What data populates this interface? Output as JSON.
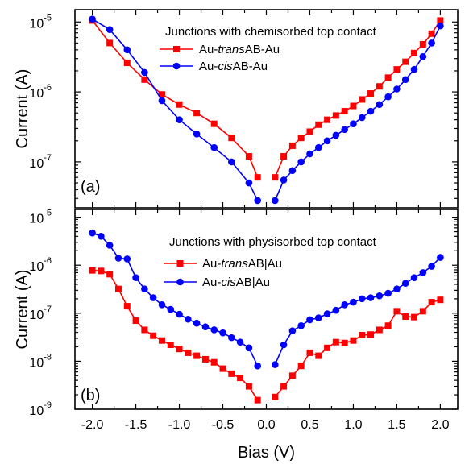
{
  "x_axis": {
    "label": "Bias (V)",
    "ticks": [
      "-2.0",
      "-1.5",
      "-1.0",
      "-0.5",
      "0.0",
      "0.5",
      "1.0",
      "1.5",
      "2.0"
    ]
  },
  "colors": {
    "trans": "#ff0000",
    "cis": "#0000ff"
  },
  "chart_data": [
    {
      "type": "line",
      "panel_label": "(a)",
      "ylabel": "Current (A)",
      "yscale": "log",
      "xlim": [
        -2.2,
        2.2
      ],
      "ylim": [
        2.2e-08,
        1.5e-05
      ],
      "y_ticks": [
        {
          "v": 1e-07,
          "mant": "10",
          "exp": "-7"
        },
        {
          "v": 1e-06,
          "mant": "10",
          "exp": "-6"
        },
        {
          "v": 1e-05,
          "mant": "10",
          "exp": "-5"
        }
      ],
      "legend_title": "Junctions with chemisorbed top contact",
      "legend_position": "top-right",
      "series": [
        {
          "name": "Au-transAB-Au",
          "legend": [
            "Au-",
            "trans",
            "AB-Au"
          ],
          "color": "#ff0000",
          "marker": "square",
          "branches": [
            {
              "x": [
                -2.0,
                -1.8,
                -1.6,
                -1.4,
                -1.2,
                -1.0,
                -0.8,
                -0.6,
                -0.4,
                -0.2,
                -0.1
              ],
              "y": [
                1.05e-05,
                5e-06,
                2.6e-06,
                1.5e-06,
                9.2e-07,
                6.6e-07,
                5e-07,
                3.5e-07,
                2.2e-07,
                1.2e-07,
                6e-08
              ]
            },
            {
              "x": [
                0.1,
                0.2,
                0.3,
                0.4,
                0.5,
                0.6,
                0.7,
                0.8,
                0.9,
                1.0,
                1.1,
                1.2,
                1.3,
                1.4,
                1.5,
                1.6,
                1.7,
                1.8,
                1.9,
                2.0
              ],
              "y": [
                6e-08,
                1.2e-07,
                1.7e-07,
                2.2e-07,
                2.7e-07,
                3.4e-07,
                4e-07,
                4.6e-07,
                5.3e-07,
                6.3e-07,
                7.8e-07,
                9.5e-07,
                1.2e-06,
                1.6e-06,
                2.1e-06,
                2.7e-06,
                3.6e-06,
                4.8e-06,
                6.8e-06,
                1.05e-05
              ]
            }
          ]
        },
        {
          "name": "Au-cisAB-Au",
          "legend": [
            "Au-",
            "cis",
            "AB-Au"
          ],
          "color": "#0000ff",
          "marker": "circle",
          "branches": [
            {
              "x": [
                -2.0,
                -1.8,
                -1.6,
                -1.4,
                -1.2,
                -1.0,
                -0.8,
                -0.6,
                -0.4,
                -0.2,
                -0.1
              ],
              "y": [
                1.1e-05,
                7.8e-06,
                4e-06,
                1.9e-06,
                7.5e-07,
                4e-07,
                2.5e-07,
                1.6e-07,
                1e-07,
                5e-08,
                2.8e-08
              ]
            },
            {
              "x": [
                0.1,
                0.2,
                0.3,
                0.4,
                0.5,
                0.6,
                0.7,
                0.8,
                0.9,
                1.0,
                1.1,
                1.2,
                1.3,
                1.4,
                1.5,
                1.6,
                1.7,
                1.8,
                1.9,
                2.0
              ],
              "y": [
                2.8e-08,
                5.5e-08,
                7.5e-08,
                1e-07,
                1.3e-07,
                1.6e-07,
                2e-07,
                2.4e-07,
                2.9e-07,
                3.5e-07,
                4.3e-07,
                5.3e-07,
                6.6e-07,
                8.5e-07,
                1.1e-06,
                1.5e-06,
                2.1e-06,
                3.2e-06,
                5e-06,
                8.8e-06
              ]
            }
          ]
        }
      ]
    },
    {
      "type": "line",
      "panel_label": "(b)",
      "ylabel": "Current (A)",
      "yscale": "log",
      "xlim": [
        -2.2,
        2.2
      ],
      "ylim": [
        1e-09,
        1.45e-05
      ],
      "y_ticks": [
        {
          "v": 1e-09,
          "mant": "10",
          "exp": "-9"
        },
        {
          "v": 1e-08,
          "mant": "10",
          "exp": "-8"
        },
        {
          "v": 1e-07,
          "mant": "10",
          "exp": "-7"
        },
        {
          "v": 1e-06,
          "mant": "10",
          "exp": "-6"
        },
        {
          "v": 1e-05,
          "mant": "10",
          "exp": "-5"
        }
      ],
      "legend_title": "Junctions with physisorbed top contact",
      "legend_position": "top-right",
      "series": [
        {
          "name": "Au-transAB|Au",
          "legend": [
            "Au-",
            "trans",
            "AB|Au"
          ],
          "color": "#ff0000",
          "marker": "square",
          "branches": [
            {
              "x": [
                -2.0,
                -1.9,
                -1.8,
                -1.7,
                -1.6,
                -1.5,
                -1.4,
                -1.3,
                -1.2,
                -1.1,
                -1.0,
                -0.9,
                -0.8,
                -0.7,
                -0.6,
                -0.5,
                -0.4,
                -0.3,
                -0.2,
                -0.1
              ],
              "y": [
                7.8e-07,
                7.6e-07,
                6.5e-07,
                3.2e-07,
                1.4e-07,
                7e-08,
                4.5e-08,
                3.4e-08,
                2.7e-08,
                2.2e-08,
                1.8e-08,
                1.5e-08,
                1.3e-08,
                1.1e-08,
                9.5e-09,
                7e-09,
                5.5e-09,
                4.5e-09,
                3e-09,
                1.55e-09
              ]
            },
            {
              "x": [
                0.1,
                0.2,
                0.3,
                0.4,
                0.5,
                0.6,
                0.7,
                0.8,
                0.9,
                1.0,
                1.1,
                1.2,
                1.3,
                1.4,
                1.5,
                1.6,
                1.7,
                1.8,
                1.9,
                2.0
              ],
              "y": [
                1.8e-09,
                3e-09,
                5e-09,
                8e-09,
                1.5e-08,
                1.3e-08,
                1.9e-08,
                2.5e-08,
                2.4e-08,
                2.7e-08,
                3.5e-08,
                3.6e-08,
                4.5e-08,
                5.5e-08,
                1.1e-07,
                8.5e-08,
                8.3e-08,
                1.1e-07,
                1.7e-07,
                1.9e-07
              ]
            }
          ]
        },
        {
          "name": "Au-cisAB|Au",
          "legend": [
            "Au-",
            "cis",
            "AB|Au"
          ],
          "color": "#0000ff",
          "marker": "circle",
          "branches": [
            {
              "x": [
                -2.0,
                -1.9,
                -1.8,
                -1.7,
                -1.6,
                -1.5,
                -1.4,
                -1.3,
                -1.2,
                -1.1,
                -1.0,
                -0.9,
                -0.8,
                -0.7,
                -0.6,
                -0.5,
                -0.4,
                -0.3,
                -0.2,
                -0.1
              ],
              "y": [
                4.7e-06,
                4e-06,
                2.6e-06,
                1.4e-06,
                1.35e-06,
                5.5e-07,
                3.2e-07,
                2.1e-07,
                1.5e-07,
                1.2e-07,
                9.5e-08,
                7.5e-08,
                6.2e-08,
                5.2e-08,
                4.5e-08,
                3.9e-08,
                3.1e-08,
                2.5e-08,
                1.9e-08,
                8e-09
              ]
            },
            {
              "x": [
                0.1,
                0.2,
                0.3,
                0.4,
                0.5,
                0.6,
                0.7,
                0.8,
                0.9,
                1.0,
                1.1,
                1.2,
                1.3,
                1.4,
                1.5,
                1.6,
                1.7,
                1.8,
                1.9,
                2.0
              ],
              "y": [
                8.5e-09,
                2.2e-08,
                4.3e-08,
                5.5e-08,
                7.3e-08,
                8e-08,
                9.7e-08,
                1.15e-07,
                1.5e-07,
                1.7e-07,
                2e-07,
                2.1e-07,
                2.3e-07,
                2.6e-07,
                3.2e-07,
                4.2e-07,
                5.5e-07,
                7e-07,
                9.5e-07,
                1.45e-06
              ]
            }
          ]
        }
      ]
    }
  ]
}
